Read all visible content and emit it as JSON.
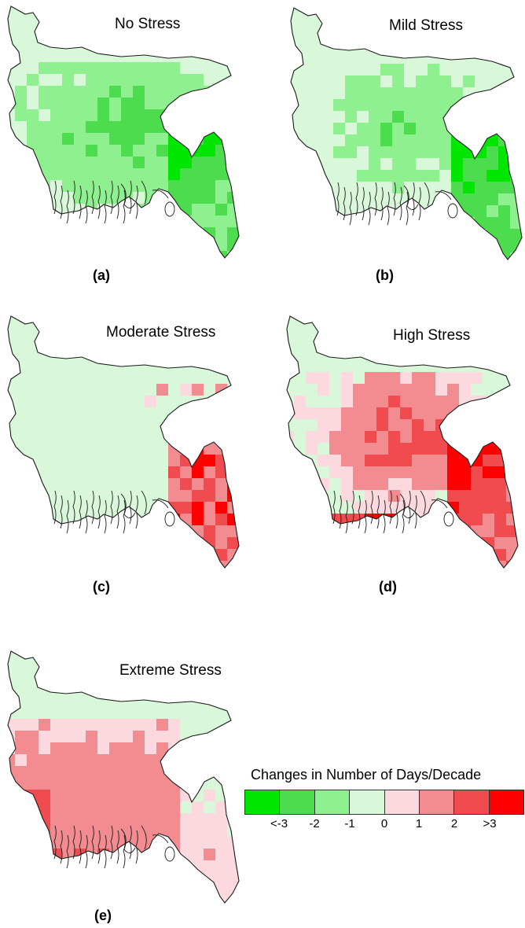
{
  "panels": [
    {
      "id": "a",
      "title": "No Stress",
      "label": "(a)",
      "palette": "green",
      "intensity": "high",
      "shade": "light"
    },
    {
      "id": "b",
      "title": "Mild Stress",
      "label": "(b)",
      "palette": "green",
      "intensity": "medium",
      "shade": "light"
    },
    {
      "id": "c",
      "title": "Moderate Stress",
      "label": "(c)",
      "palette": "red",
      "intensity": "low",
      "shade": "light"
    },
    {
      "id": "d",
      "title": "High Stress",
      "label": "(d)",
      "palette": "red",
      "intensity": "high",
      "shade": "light"
    },
    {
      "id": "e",
      "title": "Extreme Stress",
      "label": "(e)",
      "palette": "red",
      "intensity": "medium",
      "shade": "pink"
    }
  ],
  "legend": {
    "title": "Changes in Number of Days/Decade",
    "colors": [
      "#00e600",
      "#4ddc4d",
      "#8ef08e",
      "#d9f7d9",
      "#fcd9de",
      "#f28c91",
      "#f04b4f",
      "#ff0000"
    ],
    "ticks": [
      "<-3",
      "-2",
      "-1",
      "0",
      "1",
      "2",
      ">3"
    ]
  }
}
